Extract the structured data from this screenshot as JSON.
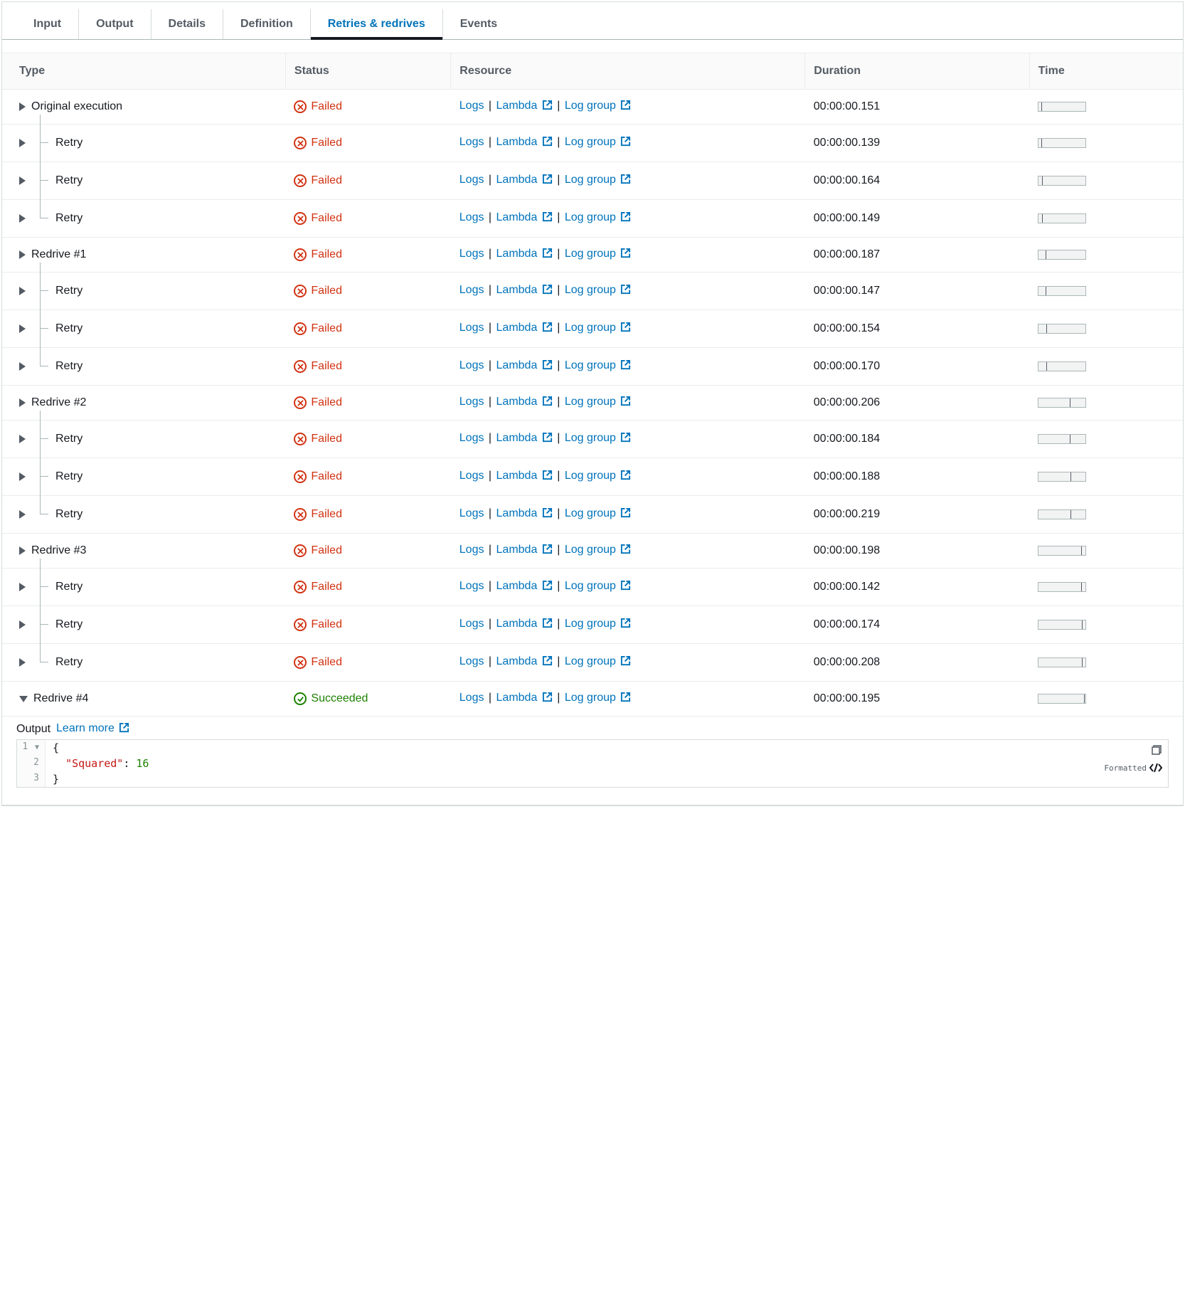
{
  "tabs": {
    "items": [
      {
        "label": "Input"
      },
      {
        "label": "Output"
      },
      {
        "label": "Details"
      },
      {
        "label": "Definition"
      },
      {
        "label": "Retries & redrives"
      },
      {
        "label": "Events"
      }
    ],
    "activeIndex": 4
  },
  "table": {
    "columns": {
      "type": "Type",
      "status": "Status",
      "resource": "Resource",
      "duration": "Duration",
      "time": "Time"
    },
    "resourceLinks": {
      "logs": "Logs",
      "lambda": "Lambda",
      "logGroup": "Log group"
    },
    "statusLabels": {
      "failed": "Failed",
      "succeeded": "Succeeded"
    },
    "colors": {
      "failed": "#d13212",
      "succeeded": "#1d8102",
      "link": "#0073bb"
    },
    "rows": [
      {
        "type": "Original execution",
        "indent": 0,
        "status": "failed",
        "duration": "00:00:00.151",
        "tick": 4,
        "expanded": "right"
      },
      {
        "type": "Retry",
        "indent": 1,
        "status": "failed",
        "duration": "00:00:00.139",
        "tick": 4,
        "connector": "mid",
        "expanded": "right"
      },
      {
        "type": "Retry",
        "indent": 1,
        "status": "failed",
        "duration": "00:00:00.164",
        "tick": 5,
        "connector": "mid",
        "expanded": "right"
      },
      {
        "type": "Retry",
        "indent": 1,
        "status": "failed",
        "duration": "00:00:00.149",
        "tick": 5,
        "connector": "last",
        "expanded": "right"
      },
      {
        "type": "Redrive #1",
        "indent": 0,
        "status": "failed",
        "duration": "00:00:00.187",
        "tick": 10,
        "expanded": "right"
      },
      {
        "type": "Retry",
        "indent": 1,
        "status": "failed",
        "duration": "00:00:00.147",
        "tick": 10,
        "connector": "mid",
        "expanded": "right"
      },
      {
        "type": "Retry",
        "indent": 1,
        "status": "failed",
        "duration": "00:00:00.154",
        "tick": 11,
        "connector": "mid",
        "expanded": "right"
      },
      {
        "type": "Retry",
        "indent": 1,
        "status": "failed",
        "duration": "00:00:00.170",
        "tick": 11,
        "connector": "last",
        "expanded": "right"
      },
      {
        "type": "Redrive #2",
        "indent": 0,
        "status": "failed",
        "duration": "00:00:00.206",
        "tick": 44,
        "expanded": "right"
      },
      {
        "type": "Retry",
        "indent": 1,
        "status": "failed",
        "duration": "00:00:00.184",
        "tick": 44,
        "connector": "mid",
        "expanded": "right"
      },
      {
        "type": "Retry",
        "indent": 1,
        "status": "failed",
        "duration": "00:00:00.188",
        "tick": 45,
        "connector": "mid",
        "expanded": "right"
      },
      {
        "type": "Retry",
        "indent": 1,
        "status": "failed",
        "duration": "00:00:00.219",
        "tick": 45,
        "connector": "last",
        "expanded": "right"
      },
      {
        "type": "Redrive #3",
        "indent": 0,
        "status": "failed",
        "duration": "00:00:00.198",
        "tick": 60,
        "expanded": "right"
      },
      {
        "type": "Retry",
        "indent": 1,
        "status": "failed",
        "duration": "00:00:00.142",
        "tick": 60,
        "connector": "mid",
        "expanded": "right"
      },
      {
        "type": "Retry",
        "indent": 1,
        "status": "failed",
        "duration": "00:00:00.174",
        "tick": 61,
        "connector": "mid",
        "expanded": "right"
      },
      {
        "type": "Retry",
        "indent": 1,
        "status": "failed",
        "duration": "00:00:00.208",
        "tick": 61,
        "connector": "last",
        "expanded": "right"
      },
      {
        "type": "Redrive #4",
        "indent": 0,
        "status": "succeeded",
        "duration": "00:00:00.195",
        "tick": 64,
        "expanded": "down"
      }
    ]
  },
  "output": {
    "label": "Output",
    "learnMore": "Learn more",
    "code": {
      "lines": [
        {
          "num": "1",
          "fold": true,
          "content_raw": "{"
        },
        {
          "num": "2",
          "content_key": "\"Squared\"",
          "content_sep": ": ",
          "content_val": "16"
        },
        {
          "num": "3",
          "content_raw": "}"
        }
      ]
    },
    "formatted_label": "Formatted"
  }
}
